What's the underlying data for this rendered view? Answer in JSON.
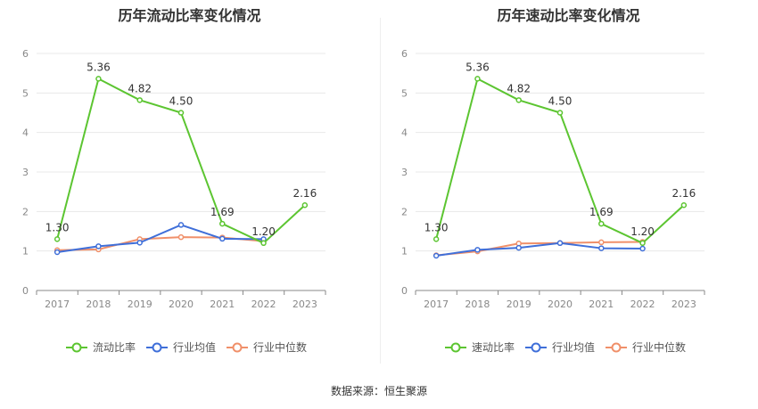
{
  "source": "数据来源：恒生聚源",
  "colors": {
    "primary": "#5cc531",
    "industry_avg": "#3f6fd9",
    "industry_median": "#f0906a",
    "grid": "#e8e8e8",
    "axis": "#888888"
  },
  "chart_data": [
    {
      "type": "line",
      "title": "历年流动比率变化情况",
      "categories": [
        "2017",
        "2018",
        "2019",
        "2020",
        "2021",
        "2022",
        "2023"
      ],
      "ylim": [
        0,
        6
      ],
      "yticks": [
        "0",
        "1",
        "2",
        "3",
        "4",
        "5",
        "6"
      ],
      "grid": true,
      "legend_position": "bottom",
      "series": [
        {
          "name": "流动比率",
          "values": [
            1.3,
            5.36,
            4.82,
            4.5,
            1.69,
            1.2,
            2.16
          ],
          "labels": [
            "1.30",
            "5.36",
            "4.82",
            "4.50",
            "1.69",
            "1.20",
            "2.16"
          ]
        },
        {
          "name": "行业均值",
          "values": [
            0.97,
            1.12,
            1.21,
            1.66,
            1.31,
            1.3,
            null
          ]
        },
        {
          "name": "行业中位数",
          "values": [
            1.02,
            1.04,
            1.3,
            1.35,
            1.34,
            1.25,
            null
          ]
        }
      ]
    },
    {
      "type": "line",
      "title": "历年速动比率变化情况",
      "categories": [
        "2017",
        "2018",
        "2019",
        "2020",
        "2021",
        "2022",
        "2023"
      ],
      "ylim": [
        0,
        6
      ],
      "yticks": [
        "0",
        "1",
        "2",
        "3",
        "4",
        "5",
        "6"
      ],
      "grid": true,
      "legend_position": "bottom",
      "series": [
        {
          "name": "速动比率",
          "values": [
            1.3,
            5.36,
            4.82,
            4.5,
            1.69,
            1.2,
            2.16
          ],
          "labels": [
            "1.30",
            "5.36",
            "4.82",
            "4.50",
            "1.69",
            "1.20",
            "2.16"
          ]
        },
        {
          "name": "行业均值",
          "values": [
            0.88,
            1.03,
            1.08,
            1.2,
            1.07,
            1.06,
            null
          ]
        },
        {
          "name": "行业中位数",
          "values": [
            0.89,
            0.99,
            1.19,
            1.2,
            1.22,
            1.23,
            null
          ]
        }
      ]
    }
  ]
}
